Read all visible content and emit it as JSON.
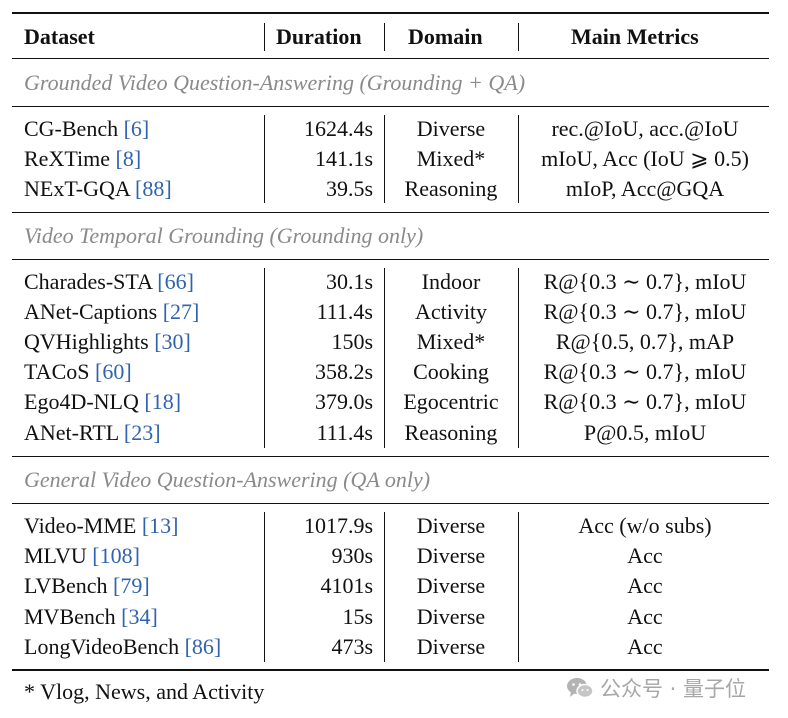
{
  "header": {
    "dataset": "Dataset",
    "duration": "Duration",
    "domain": "Domain",
    "metrics": "Main Metrics"
  },
  "sections": [
    {
      "title": "Grounded Video Question-Answering (Grounding + QA)",
      "rows": [
        {
          "name": "CG-Bench",
          "ref": "6",
          "duration": "1624.4s",
          "domain": "Diverse",
          "metrics": "rec.@IoU, acc.@IoU"
        },
        {
          "name": "ReXTime",
          "ref": "8",
          "duration": "141.1s",
          "domain": "Mixed*",
          "metrics": "mIoU, Acc (IoU ⩾ 0.5)"
        },
        {
          "name": "NExT-GQA",
          "ref": "88",
          "duration": "39.5s",
          "domain": "Reasoning",
          "metrics": "mIoP, Acc@GQA"
        }
      ]
    },
    {
      "title": "Video Temporal Grounding (Grounding only)",
      "rows": [
        {
          "name": "Charades-STA",
          "ref": "66",
          "duration": "30.1s",
          "domain": "Indoor",
          "metrics": "R@{0.3 ∼ 0.7}, mIoU"
        },
        {
          "name": "ANet-Captions",
          "ref": "27",
          "duration": "111.4s",
          "domain": "Activity",
          "metrics": "R@{0.3 ∼ 0.7}, mIoU"
        },
        {
          "name": "QVHighlights",
          "ref": "30",
          "duration": "150s",
          "domain": "Mixed*",
          "metrics": "R@{0.5, 0.7}, mAP"
        },
        {
          "name": "TACoS",
          "ref": "60",
          "duration": "358.2s",
          "domain": "Cooking",
          "metrics": "R@{0.3 ∼ 0.7}, mIoU"
        },
        {
          "name": "Ego4D-NLQ",
          "ref": "18",
          "duration": "379.0s",
          "domain": "Egocentric",
          "metrics": "R@{0.3 ∼ 0.7}, mIoU"
        },
        {
          "name": "ANet-RTL",
          "ref": "23",
          "duration": "111.4s",
          "domain": "Reasoning",
          "metrics": "P@0.5, mIoU"
        }
      ]
    },
    {
      "title": "General Video Question-Answering (QA only)",
      "rows": [
        {
          "name": "Video-MME",
          "ref": "13",
          "duration": "1017.9s",
          "domain": "Diverse",
          "metrics": "Acc (w/o subs)"
        },
        {
          "name": "MLVU",
          "ref": "108",
          "duration": "930s",
          "domain": "Diverse",
          "metrics": "Acc"
        },
        {
          "name": "LVBench",
          "ref": "79",
          "duration": "4101s",
          "domain": "Diverse",
          "metrics": "Acc"
        },
        {
          "name": "MVBench",
          "ref": "34",
          "duration": "15s",
          "domain": "Diverse",
          "metrics": "Acc"
        },
        {
          "name": "LongVideoBench",
          "ref": "86",
          "duration": "473s",
          "domain": "Diverse",
          "metrics": "Acc"
        }
      ]
    }
  ],
  "footnote": "* Vlog, News, and Activity",
  "watermark": {
    "text": "公众号 · 量子位",
    "icon": "wechat-icon"
  }
}
